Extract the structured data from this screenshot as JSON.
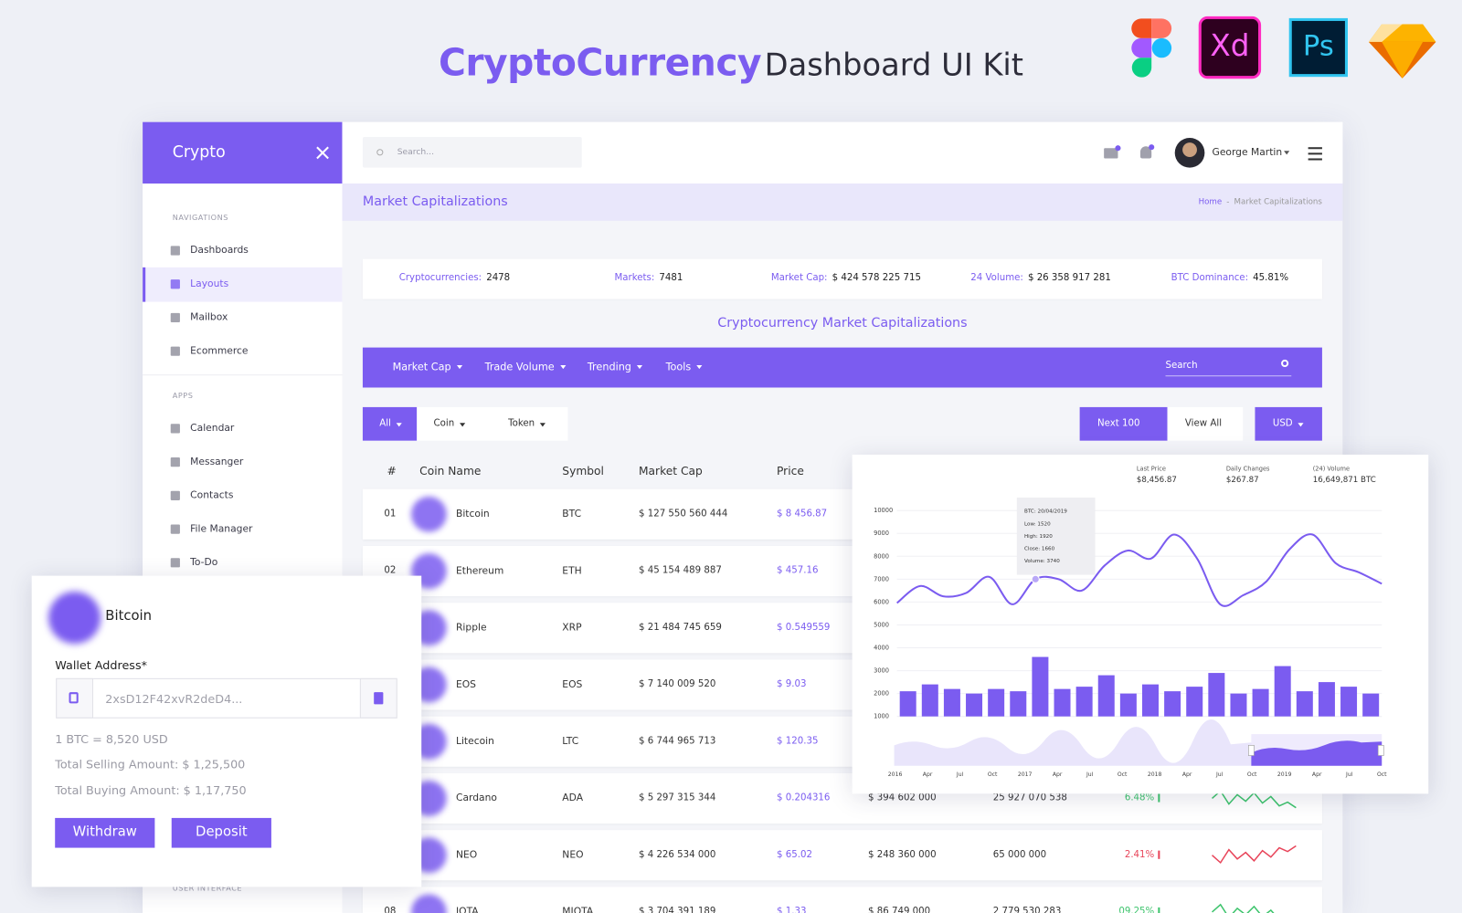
{
  "header": {
    "title_bold": "CryptoCurrency",
    "title_rest": "Dashboard UI Kit",
    "app_icons": [
      "Xd",
      "Ps"
    ]
  },
  "sidebar": {
    "brand": "Crypto",
    "active_item": [
      0,
      1
    ],
    "sections": [
      {
        "title": "NAVIGATIONS",
        "items": [
          "Dashboards",
          "Layouts",
          "Mailbox",
          "Ecommerce"
        ]
      },
      {
        "title": "APPS",
        "items": [
          "Calendar",
          "Messanger",
          "Contacts",
          "File Manager",
          "To-Do"
        ]
      },
      {
        "title": "USER INTERFACE",
        "items": []
      }
    ]
  },
  "topbar": {
    "search_placeholder": "Search...",
    "user": "George Martin"
  },
  "page_header": {
    "title": "Market Capitalizations",
    "breadcrumb": [
      "Home",
      "Market Capitalizations"
    ],
    "separator": "-"
  },
  "stats": [
    {
      "label": "Cryptocurrencies:",
      "value": "2478"
    },
    {
      "label": "Markets:",
      "value": "7481"
    },
    {
      "label": "Market Cap:",
      "value": "$ 424 578 225 715"
    },
    {
      "label": "24 Volume:",
      "value": "$ 26 358 917 281"
    },
    {
      "label": "BTC Dominance:",
      "value": "45.81%"
    }
  ],
  "section_title": "Cryptocurrency Market Capitalizations",
  "toolbar": {
    "menus": [
      "Market Cap",
      "Trade Volume",
      "Trending",
      "Tools"
    ],
    "search_placeholder": "Search"
  },
  "filters": {
    "tabs": [
      "All",
      "Coin",
      "Token"
    ],
    "buttons": [
      "Next 100",
      "View All",
      "USD"
    ]
  },
  "table": {
    "columns": [
      "#",
      "Coin Name",
      "Symbol",
      "Market Cap",
      "Price"
    ],
    "rows": [
      {
        "rank": "01",
        "name": "Bitcoin",
        "symbol": "BTC",
        "market_cap": "$ 127 550 560 444",
        "price": "$ 8 456.87",
        "volume": null,
        "supply": null,
        "change": null,
        "trend": null
      },
      {
        "rank": "02",
        "name": "Ethereum",
        "symbol": "ETH",
        "market_cap": "$ 45 154 489 887",
        "price": "$ 457.16",
        "volume": null,
        "supply": null,
        "change": null,
        "trend": null
      },
      {
        "rank": null,
        "name": "Ripple",
        "symbol": "XRP",
        "market_cap": "$ 21 484 745 659",
        "price": "$ 0.549559",
        "volume": null,
        "supply": null,
        "change": null,
        "trend": null
      },
      {
        "rank": null,
        "name": "EOS",
        "symbol": "EOS",
        "market_cap": "$ 7 140 009 520",
        "price": "$ 9.03",
        "volume": null,
        "supply": null,
        "change": null,
        "trend": null
      },
      {
        "rank": null,
        "name": "Litecoin",
        "symbol": "LTC",
        "market_cap": "$ 6 744 965 713",
        "price": "$ 120.35",
        "volume": null,
        "supply": null,
        "change": null,
        "trend": null
      },
      {
        "rank": null,
        "name": "Cardano",
        "symbol": "ADA",
        "market_cap": "$ 5 297 315 344",
        "price": "$ 0.204316",
        "volume": "$ 394 602 000",
        "supply": "25 927 070 538",
        "change": "6.48%",
        "trend": "up"
      },
      {
        "rank": null,
        "name": "NEO",
        "symbol": "NEO",
        "market_cap": "$ 4 226 534 000",
        "price": "$ 65.02",
        "volume": "$ 248 360 000",
        "supply": "65 000 000",
        "change": "2.41%",
        "trend": "down"
      },
      {
        "rank": "08",
        "name": "IOTA",
        "symbol": "MIOTA",
        "market_cap": "$ 3 704 391 189",
        "price": "$ 1.33",
        "volume": "$ 86 749 000",
        "supply": "2 779 530 283",
        "change": "09.25%",
        "trend": "up"
      }
    ]
  },
  "wallet": {
    "coin": "Bitcoin",
    "address_label": "Wallet Address*",
    "address": "2xsD12F42xvR2deD4...",
    "rate": "1 BTC = 8,520 USD",
    "selling": "Total Selling Amount: $ 1,25,500",
    "buying": "Total Buying Amount: $ 1,17,750",
    "buttons": [
      "Withdraw",
      "Deposit"
    ]
  },
  "chart_data": {
    "type": "combo",
    "stats": [
      {
        "label": "Last Price",
        "value": "$8,456.87"
      },
      {
        "label": "Daily Changes",
        "value": "$267.87"
      },
      {
        "label": "(24) Volume",
        "value": "16,649,871 BTC"
      }
    ],
    "tooltip": [
      "BTC: 20/04/2019",
      "Low: 1520",
      "High: 1920",
      "Close: 1660",
      "Volume: 3740"
    ],
    "tooltip_index": 6,
    "ylim": [
      1000,
      10000
    ],
    "yticks": [
      10000,
      9000,
      8000,
      7000,
      6000,
      5000,
      4000,
      3000,
      2000,
      1000
    ],
    "grid": true,
    "x_labels": [
      "2016",
      "Apr",
      "Jul",
      "Oct",
      "2017",
      "Apr",
      "Jul",
      "Oct",
      "2018",
      "Apr",
      "Jul",
      "Oct",
      "2019",
      "Apr",
      "Jul",
      "Oct"
    ],
    "series": [
      {
        "type": "line",
        "color": "#7b5cf0",
        "values": [
          5960,
          6700,
          6250,
          6400,
          7100,
          5900,
          7000,
          7000,
          6500,
          7600,
          8250,
          7900,
          8950,
          7900,
          5900,
          6300,
          6900,
          8300,
          8950,
          7700,
          7300,
          6800
        ]
      },
      {
        "type": "bar",
        "color": "#7b5cf0",
        "values": [
          2100,
          2400,
          2200,
          2000,
          2200,
          2100,
          3600,
          2200,
          2300,
          2800,
          2000,
          2400,
          2100,
          2300,
          2900,
          2000,
          2200,
          3200,
          2100,
          2500,
          2300,
          2000
        ]
      }
    ]
  }
}
